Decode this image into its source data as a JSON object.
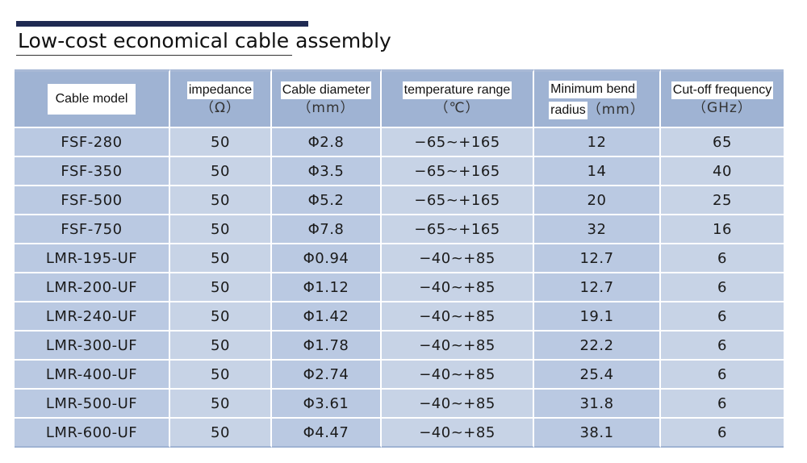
{
  "title": "Low-cost economical cable assembly",
  "colors": {
    "accent_bar": "#1f2a52",
    "header_bg": "#9fb3d3",
    "cell_dark": "#bac9e2",
    "cell_light": "#c7d3e6"
  },
  "table": {
    "headers": {
      "model": {
        "label": "Cable model"
      },
      "impedance": {
        "label": "impedance",
        "unit": "（Ω）"
      },
      "diameter": {
        "label": "Cable diameter",
        "unit": "（mm）"
      },
      "temperature": {
        "label": "temperature range",
        "unit": "（℃）"
      },
      "bend": {
        "label_line1": "Minimum bend",
        "label_line2": "radius",
        "unit": "（mm）"
      },
      "frequency": {
        "label": "Cut-off frequency",
        "unit": "（GHz）"
      }
    },
    "rows": [
      {
        "model": "FSF-280",
        "impedance": "50",
        "diameter": "Φ2.8",
        "temperature": "−65~+165",
        "bend": "12",
        "frequency": "65"
      },
      {
        "model": "FSF-350",
        "impedance": "50",
        "diameter": "Φ3.5",
        "temperature": "−65~+165",
        "bend": "14",
        "frequency": "40"
      },
      {
        "model": "FSF-500",
        "impedance": "50",
        "diameter": "Φ5.2",
        "temperature": "−65~+165",
        "bend": "20",
        "frequency": "25"
      },
      {
        "model": "FSF-750",
        "impedance": "50",
        "diameter": "Φ7.8",
        "temperature": "−65~+165",
        "bend": "32",
        "frequency": "16"
      },
      {
        "model": "LMR-195-UF",
        "impedance": "50",
        "diameter": "Φ0.94",
        "temperature": "−40~+85",
        "bend": "12.7",
        "frequency": "6"
      },
      {
        "model": "LMR-200-UF",
        "impedance": "50",
        "diameter": "Φ1.12",
        "temperature": "−40~+85",
        "bend": "12.7",
        "frequency": "6"
      },
      {
        "model": "LMR-240-UF",
        "impedance": "50",
        "diameter": "Φ1.42",
        "temperature": "−40~+85",
        "bend": "19.1",
        "frequency": "6"
      },
      {
        "model": "LMR-300-UF",
        "impedance": "50",
        "diameter": "Φ1.78",
        "temperature": "−40~+85",
        "bend": "22.2",
        "frequency": "6"
      },
      {
        "model": "LMR-400-UF",
        "impedance": "50",
        "diameter": "Φ2.74",
        "temperature": "−40~+85",
        "bend": "25.4",
        "frequency": "6"
      },
      {
        "model": "LMR-500-UF",
        "impedance": "50",
        "diameter": "Φ3.61",
        "temperature": "−40~+85",
        "bend": "31.8",
        "frequency": "6"
      },
      {
        "model": "LMR-600-UF",
        "impedance": "50",
        "diameter": "Φ4.47",
        "temperature": "−40~+85",
        "bend": "38.1",
        "frequency": "6"
      }
    ]
  }
}
